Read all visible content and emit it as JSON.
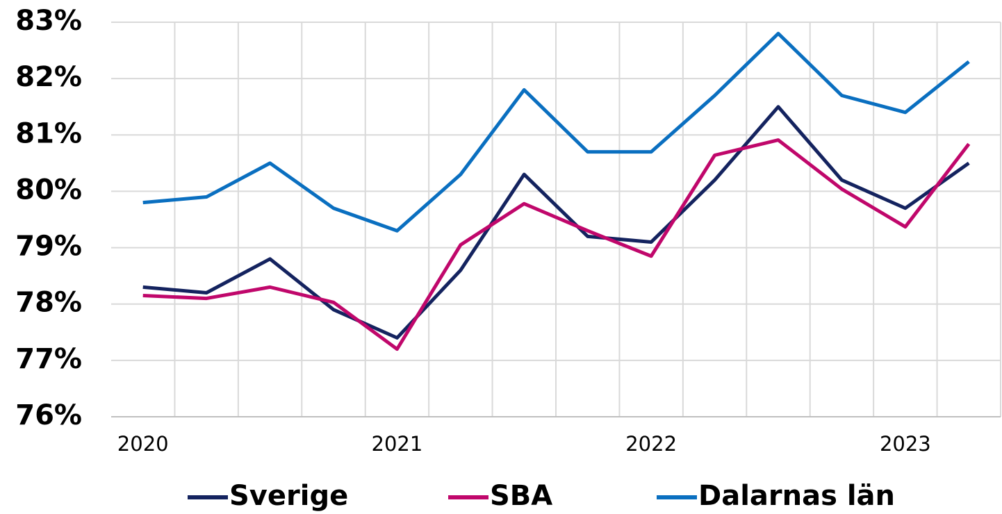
{
  "chart_data": {
    "type": "line",
    "categories": [
      "2020",
      null,
      null,
      null,
      "2021",
      null,
      null,
      null,
      "2022",
      null,
      null,
      null,
      "2023",
      null
    ],
    "series": [
      {
        "name": "Sverige",
        "color": "#14235f",
        "values": [
          78.3,
          78.2,
          78.8,
          77.9,
          77.4,
          78.6,
          80.3,
          79.2,
          79.1,
          80.2,
          81.5,
          80.2,
          79.7,
          80.5
        ]
      },
      {
        "name": "SBA",
        "color": "#c0076b",
        "values": [
          78.15,
          78.1,
          78.3,
          78.03,
          77.2,
          79.05,
          79.78,
          79.3,
          78.85,
          80.64,
          80.91,
          80.04,
          79.37,
          80.84
        ]
      },
      {
        "name": "Dalarnas län",
        "color": "#0a6fc0",
        "values": [
          79.8,
          79.9,
          80.5,
          79.7,
          79.3,
          80.3,
          81.8,
          80.7,
          80.7,
          81.7,
          82.8,
          81.7,
          81.4,
          82.3
        ]
      }
    ],
    "ylim": [
      76,
      83
    ],
    "yticks": [
      {
        "value": 76,
        "label": "76%"
      },
      {
        "value": 77,
        "label": "77%"
      },
      {
        "value": 78,
        "label": "78%"
      },
      {
        "value": 79,
        "label": "79%"
      },
      {
        "value": 80,
        "label": "80%"
      },
      {
        "value": 81,
        "label": "81%"
      },
      {
        "value": 82,
        "label": "82%"
      },
      {
        "value": 83,
        "label": "83%"
      }
    ],
    "grid": true
  }
}
